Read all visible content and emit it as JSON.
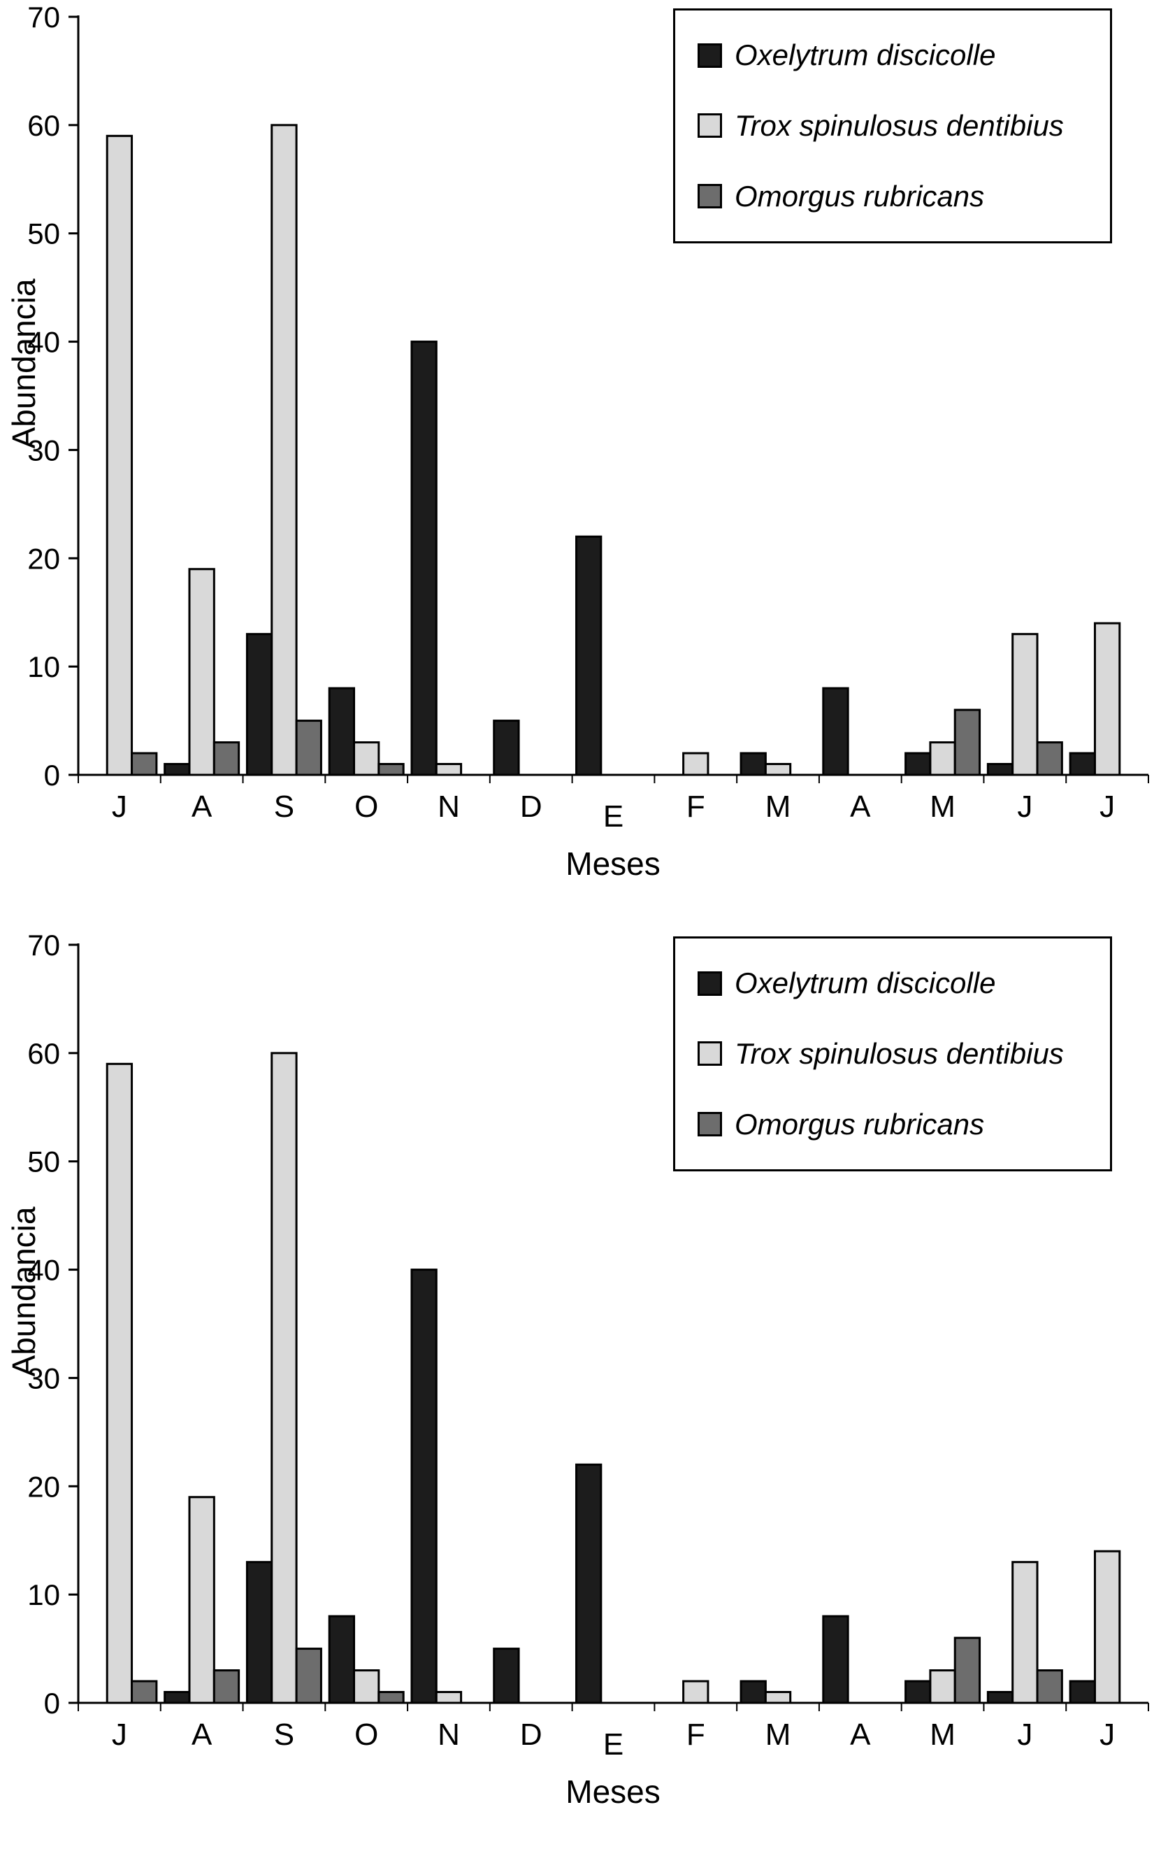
{
  "chart_data": [
    {
      "type": "bar",
      "title": "",
      "xlabel": "Meses",
      "ylabel": "Abundancia",
      "ylim": [
        0,
        70
      ],
      "yticks": [
        0,
        10,
        20,
        30,
        40,
        50,
        60,
        70
      ],
      "grid": false,
      "legend_position": "top-right",
      "categories": [
        "J",
        "A",
        "S",
        "O",
        "N",
        "D",
        "E",
        "F",
        "M",
        "A",
        "M",
        "J",
        "J"
      ],
      "x_label_offsets": {
        "6": 14
      },
      "series": [
        {
          "name": "Oxelytrum discicolle",
          "color": "#1c1c1c",
          "values": [
            0,
            1,
            13,
            8,
            40,
            5,
            22,
            0,
            2,
            8,
            2,
            1,
            2
          ]
        },
        {
          "name": "Trox spinulosus dentibius",
          "color": "#d9d9d9",
          "values": [
            59,
            19,
            60,
            3,
            1,
            0,
            0,
            2,
            1,
            0,
            3,
            13,
            14
          ]
        },
        {
          "name": "Omorgus rubricans",
          "color": "#6d6d6d",
          "values": [
            2,
            3,
            5,
            1,
            0,
            0,
            0,
            0,
            0,
            0,
            6,
            3,
            0
          ]
        }
      ]
    },
    {
      "type": "bar",
      "title": "",
      "xlabel": "Meses",
      "ylabel": "Abundancia",
      "ylim": [
        0,
        70
      ],
      "yticks": [
        0,
        10,
        20,
        30,
        40,
        50,
        60,
        70
      ],
      "grid": false,
      "legend_position": "top-right",
      "categories": [
        "J",
        "A",
        "S",
        "O",
        "N",
        "D",
        "E",
        "F",
        "M",
        "A",
        "M",
        "J",
        "J"
      ],
      "x_label_offsets": {
        "6": 14
      },
      "series": [
        {
          "name": "Oxelytrum discicolle",
          "color": "#1c1c1c",
          "values": [
            0,
            1,
            13,
            8,
            40,
            5,
            22,
            0,
            2,
            8,
            2,
            1,
            2
          ]
        },
        {
          "name": "Trox spinulosus dentibius",
          "color": "#d9d9d9",
          "values": [
            59,
            19,
            60,
            3,
            1,
            0,
            0,
            2,
            1,
            0,
            3,
            13,
            14
          ]
        },
        {
          "name": "Omorgus rubricans",
          "color": "#6d6d6d",
          "values": [
            2,
            3,
            5,
            1,
            0,
            0,
            0,
            0,
            0,
            0,
            6,
            3,
            0
          ]
        }
      ]
    }
  ]
}
